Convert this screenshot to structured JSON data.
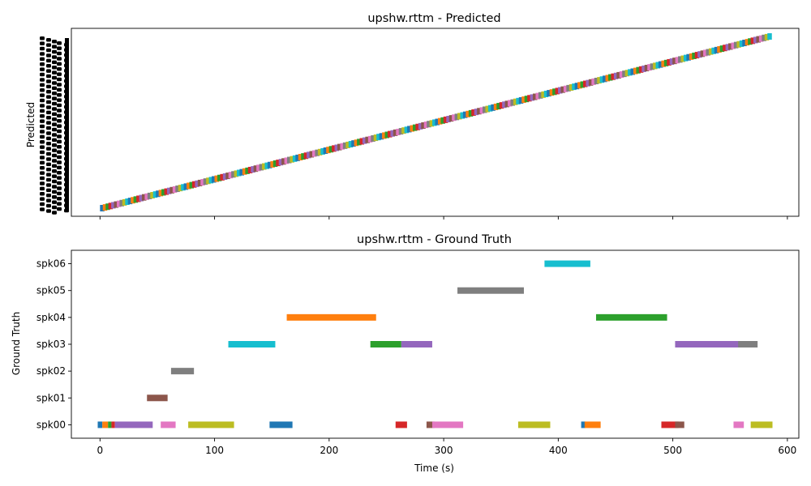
{
  "chart_data": [
    {
      "type": "timeline",
      "title": "upshw.rttm - Predicted",
      "xlabel": "",
      "ylabel": "Predicted",
      "xlim": [
        -25,
        610
      ],
      "xticks": [
        0,
        100,
        200,
        300,
        400,
        500,
        600
      ],
      "xticklabels_visible": false,
      "y_tick_labels_overlapping": true,
      "segments_start": 0,
      "segments_end": 585,
      "segment_count": 240,
      "colors": [
        "#1f77b4",
        "#ff7f0e",
        "#2ca02c",
        "#d62728",
        "#9467bd",
        "#8c564b",
        "#e377c2",
        "#7f7f7f",
        "#bcbd22",
        "#17becf"
      ]
    },
    {
      "type": "timeline",
      "title": "upshw.rttm - Ground Truth",
      "xlabel": "Time (s)",
      "ylabel": "Ground Truth",
      "xlim": [
        -25,
        610
      ],
      "xticks": [
        0,
        100,
        200,
        300,
        400,
        500,
        600
      ],
      "xticklabels": [
        "0",
        "100",
        "200",
        "300",
        "400",
        "500",
        "600"
      ],
      "categories": [
        "spk00",
        "spk01",
        "spk02",
        "spk03",
        "spk04",
        "spk05",
        "spk06"
      ],
      "segments": [
        {
          "speaker": "spk00",
          "start": -2,
          "end": 2,
          "color": "#1f77b4"
        },
        {
          "speaker": "spk00",
          "start": 2,
          "end": 7,
          "color": "#ff7f0e"
        },
        {
          "speaker": "spk00",
          "start": 7,
          "end": 10,
          "color": "#2ca02c"
        },
        {
          "speaker": "spk00",
          "start": 10,
          "end": 13,
          "color": "#d62728"
        },
        {
          "speaker": "spk00",
          "start": 13,
          "end": 46,
          "color": "#9467bd"
        },
        {
          "speaker": "spk01",
          "start": 41,
          "end": 59,
          "color": "#8c564b"
        },
        {
          "speaker": "spk00",
          "start": 53,
          "end": 66,
          "color": "#e377c2"
        },
        {
          "speaker": "spk02",
          "start": 62,
          "end": 82,
          "color": "#7f7f7f"
        },
        {
          "speaker": "spk00",
          "start": 77,
          "end": 117,
          "color": "#bcbd22"
        },
        {
          "speaker": "spk03",
          "start": 112,
          "end": 153,
          "color": "#17becf"
        },
        {
          "speaker": "spk00",
          "start": 148,
          "end": 168,
          "color": "#1f77b4"
        },
        {
          "speaker": "spk04",
          "start": 163,
          "end": 241,
          "color": "#ff7f0e"
        },
        {
          "speaker": "spk03",
          "start": 236,
          "end": 263,
          "color": "#2ca02c"
        },
        {
          "speaker": "spk00",
          "start": 258,
          "end": 268,
          "color": "#d62728"
        },
        {
          "speaker": "spk03",
          "start": 263,
          "end": 290,
          "color": "#9467bd"
        },
        {
          "speaker": "spk00",
          "start": 285,
          "end": 292,
          "color": "#8c564b"
        },
        {
          "speaker": "spk00",
          "start": 290,
          "end": 317,
          "color": "#e377c2"
        },
        {
          "speaker": "spk05",
          "start": 312,
          "end": 370,
          "color": "#7f7f7f"
        },
        {
          "speaker": "spk00",
          "start": 365,
          "end": 393,
          "color": "#bcbd22"
        },
        {
          "speaker": "spk06",
          "start": 388,
          "end": 428,
          "color": "#17becf"
        },
        {
          "speaker": "spk00",
          "start": 420,
          "end": 424,
          "color": "#1f77b4"
        },
        {
          "speaker": "spk00",
          "start": 423,
          "end": 437,
          "color": "#ff7f0e"
        },
        {
          "speaker": "spk04",
          "start": 433,
          "end": 495,
          "color": "#2ca02c"
        },
        {
          "speaker": "spk00",
          "start": 490,
          "end": 505,
          "color": "#d62728"
        },
        {
          "speaker": "spk03",
          "start": 502,
          "end": 560,
          "color": "#9467bd"
        },
        {
          "speaker": "spk00",
          "start": 502,
          "end": 510,
          "color": "#8c564b"
        },
        {
          "speaker": "spk00",
          "start": 553,
          "end": 562,
          "color": "#e377c2"
        },
        {
          "speaker": "spk03",
          "start": 557,
          "end": 574,
          "color": "#7f7f7f"
        },
        {
          "speaker": "spk00",
          "start": 568,
          "end": 587,
          "color": "#bcbd22"
        }
      ]
    }
  ]
}
